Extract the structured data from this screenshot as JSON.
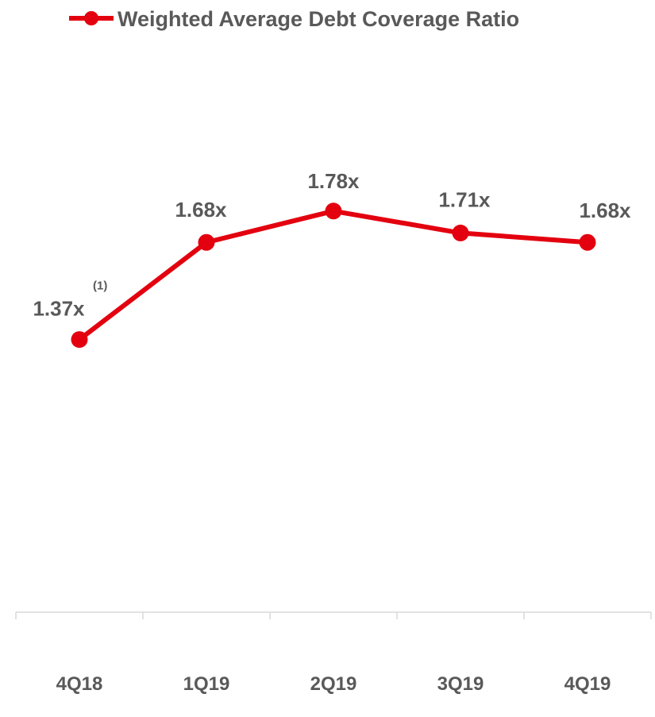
{
  "chart_data": {
    "type": "line",
    "title": "",
    "xlabel": "",
    "ylabel": "",
    "categories": [
      "4Q18",
      "1Q19",
      "2Q19",
      "3Q19",
      "4Q19"
    ],
    "ylim": [
      0.5,
      2.2
    ],
    "grid": false,
    "legend": "top",
    "series": [
      {
        "name": "Weighted Average Debt Coverage Ratio",
        "values": [
          1.37,
          1.68,
          1.78,
          1.71,
          1.68
        ],
        "labels": [
          "1.37x",
          "1.68x",
          "1.78x",
          "1.71x",
          "1.68x"
        ],
        "color": "#e3000f"
      }
    ],
    "annotations": [
      {
        "category": "4Q18",
        "text": "(1)"
      }
    ]
  }
}
